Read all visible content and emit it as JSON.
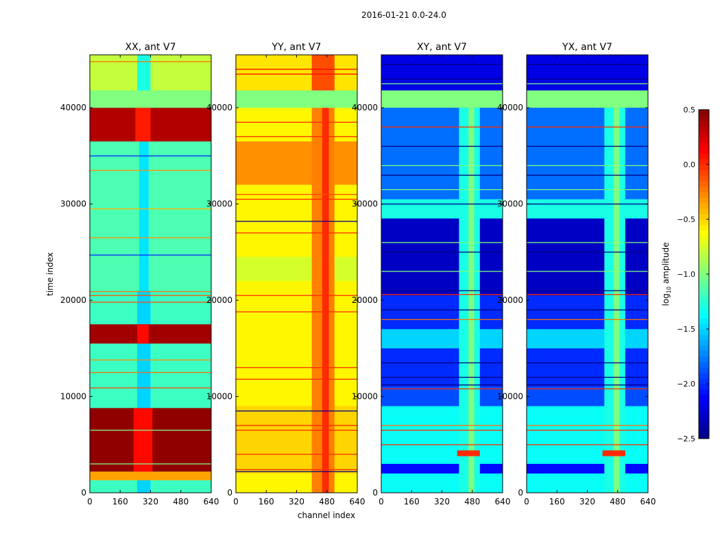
{
  "chart_data": {
    "type": "heatmap",
    "suptitle": "2016-01-21 0.0-24.0",
    "xlabel": "channel index",
    "ylabel": "time index",
    "xlim": [
      0,
      640
    ],
    "ylim": [
      0,
      45500
    ],
    "xticks": [
      "0",
      "160",
      "320",
      "480",
      "640"
    ],
    "xtick_values": [
      0,
      160,
      320,
      480,
      640
    ],
    "yticks": [
      "0",
      "10000",
      "20000",
      "30000",
      "40000"
    ],
    "ytick_values": [
      0,
      10000,
      20000,
      30000,
      40000
    ],
    "colormap": "jet",
    "colorbar": {
      "label": "log10 amplitude",
      "label_main": "log",
      "label_sub": "10",
      "label_rest": " amplitude",
      "range": [
        -2.5,
        0.5
      ],
      "ticks": [
        "0.5",
        "0.0",
        "−0.5",
        "−1.0",
        "−1.5",
        "−2.0",
        "−2.5"
      ],
      "tick_values": [
        0.5,
        0.0,
        -0.5,
        -1.0,
        -1.5,
        -2.0,
        -2.5
      ]
    },
    "panels": [
      {
        "title": "XX, ant V7",
        "blocks": [
          [
            0,
            45500,
            0,
            640,
            -1.2
          ],
          [
            0,
            36500,
            250,
            320,
            -1.5
          ],
          [
            21000,
            36500,
            0,
            640,
            -1.15
          ],
          [
            21000,
            36500,
            260,
            310,
            -1.45
          ],
          [
            1300,
            2200,
            0,
            640,
            -0.35
          ],
          [
            2200,
            8800,
            0,
            640,
            0.45
          ],
          [
            2200,
            8800,
            230,
            330,
            0.1
          ],
          [
            15500,
            17500,
            0,
            640,
            0.4
          ],
          [
            15500,
            17500,
            250,
            310,
            0.1
          ],
          [
            36500,
            40000,
            0,
            640,
            0.35
          ],
          [
            36500,
            40000,
            240,
            320,
            0.05
          ],
          [
            40000,
            41800,
            0,
            640,
            -1.0
          ],
          [
            41800,
            45500,
            0,
            640,
            -0.8
          ],
          [
            41800,
            45500,
            250,
            320,
            -1.3
          ]
        ],
        "lines": [
          [
            10900,
            -0.1
          ],
          [
            12500,
            -0.2
          ],
          [
            13800,
            -0.3
          ],
          [
            19800,
            -0.1
          ],
          [
            20500,
            -0.1
          ],
          [
            20900,
            -0.2
          ],
          [
            24700,
            -2.0
          ],
          [
            26500,
            -0.3
          ],
          [
            29500,
            -0.4
          ],
          [
            33500,
            -0.3
          ],
          [
            35000,
            -2.0
          ],
          [
            44800,
            -0.2
          ],
          [
            3000,
            -1.0
          ],
          [
            6500,
            -1.0
          ]
        ]
      },
      {
        "title": "YY, ant V7",
        "blocks": [
          [
            0,
            45500,
            0,
            640,
            -0.6
          ],
          [
            2000,
            9000,
            0,
            640,
            -0.5
          ],
          [
            22000,
            24500,
            0,
            640,
            -0.75
          ],
          [
            32000,
            36500,
            0,
            640,
            -0.3
          ],
          [
            0,
            40000,
            400,
            520,
            -0.25
          ],
          [
            0,
            40000,
            455,
            490,
            0.0
          ],
          [
            40000,
            41800,
            0,
            640,
            -1.0
          ],
          [
            41800,
            45500,
            0,
            640,
            -0.55
          ],
          [
            41800,
            45500,
            400,
            520,
            -0.1
          ]
        ],
        "lines": [
          [
            2400,
            0.0
          ],
          [
            4000,
            0.0
          ],
          [
            6500,
            0.0
          ],
          [
            7000,
            0.0
          ],
          [
            11800,
            0.0
          ],
          [
            13000,
            0.0
          ],
          [
            18800,
            0.0
          ],
          [
            20500,
            0.0
          ],
          [
            27000,
            0.0
          ],
          [
            30500,
            0.0
          ],
          [
            31000,
            -0.1
          ],
          [
            37000,
            0.0
          ],
          [
            38500,
            0.0
          ],
          [
            43500,
            0.1
          ],
          [
            44000,
            0.1
          ],
          [
            2200,
            -2.5
          ],
          [
            8500,
            -2.5
          ],
          [
            28200,
            -2.5
          ]
        ]
      },
      {
        "title": "XY, ant V7",
        "blocks": [
          [
            0,
            45500,
            0,
            640,
            -1.8
          ],
          [
            0,
            9000,
            0,
            640,
            -1.35
          ],
          [
            2000,
            3000,
            0,
            640,
            -2.1
          ],
          [
            9000,
            11000,
            0,
            640,
            -1.9
          ],
          [
            11000,
            20500,
            0,
            640,
            -2.0
          ],
          [
            15000,
            17000,
            0,
            640,
            -1.5
          ],
          [
            20500,
            28500,
            0,
            640,
            -2.3
          ],
          [
            28500,
            30500,
            0,
            640,
            -1.3
          ],
          [
            30500,
            40000,
            0,
            640,
            -1.8
          ],
          [
            41800,
            45500,
            0,
            640,
            -2.2
          ],
          [
            0,
            40000,
            410,
            520,
            -1.3
          ],
          [
            0,
            40000,
            460,
            490,
            -1.0
          ],
          [
            3800,
            4400,
            400,
            520,
            0.0
          ],
          [
            40000,
            41800,
            0,
            640,
            -1.0
          ]
        ],
        "lines": [
          [
            5000,
            0.0
          ],
          [
            6500,
            0.0
          ],
          [
            7000,
            -0.2
          ],
          [
            10800,
            0.0
          ],
          [
            18000,
            -0.2
          ],
          [
            20600,
            0.0
          ],
          [
            38000,
            0.0
          ],
          [
            11200,
            -2.5
          ],
          [
            12000,
            -2.5
          ],
          [
            13500,
            -2.5
          ],
          [
            19000,
            -2.5
          ],
          [
            21000,
            -2.5
          ],
          [
            25000,
            -2.5
          ],
          [
            30000,
            -2.5
          ],
          [
            33000,
            -2.5
          ],
          [
            36000,
            -2.5
          ],
          [
            43000,
            -2.5
          ],
          [
            44500,
            -2.5
          ],
          [
            23000,
            -1.0
          ],
          [
            26000,
            -1.0
          ],
          [
            31500,
            -1.0
          ],
          [
            34000,
            -1.0
          ],
          [
            42500,
            -1.0
          ]
        ]
      },
      {
        "title": "YX, ant V7",
        "blocks": [
          [
            0,
            45500,
            0,
            640,
            -1.8
          ],
          [
            0,
            9000,
            0,
            640,
            -1.35
          ],
          [
            2000,
            3000,
            0,
            640,
            -2.1
          ],
          [
            9000,
            11000,
            0,
            640,
            -1.9
          ],
          [
            11000,
            20500,
            0,
            640,
            -2.0
          ],
          [
            15000,
            17000,
            0,
            640,
            -1.5
          ],
          [
            20500,
            28500,
            0,
            640,
            -2.3
          ],
          [
            28500,
            30500,
            0,
            640,
            -1.3
          ],
          [
            30500,
            40000,
            0,
            640,
            -1.8
          ],
          [
            41800,
            45500,
            0,
            640,
            -2.2
          ],
          [
            0,
            40000,
            410,
            520,
            -1.3
          ],
          [
            0,
            40000,
            460,
            490,
            -1.0
          ],
          [
            3800,
            4400,
            400,
            520,
            0.0
          ],
          [
            40000,
            41800,
            0,
            640,
            -1.0
          ]
        ],
        "lines": [
          [
            5000,
            0.0
          ],
          [
            6500,
            0.0
          ],
          [
            7000,
            -0.2
          ],
          [
            10800,
            0.0
          ],
          [
            18000,
            -0.2
          ],
          [
            20600,
            0.0
          ],
          [
            38000,
            0.0
          ],
          [
            11200,
            -2.5
          ],
          [
            12000,
            -2.5
          ],
          [
            13500,
            -2.5
          ],
          [
            19000,
            -2.5
          ],
          [
            21000,
            -2.5
          ],
          [
            25000,
            -2.5
          ],
          [
            30000,
            -2.5
          ],
          [
            33000,
            -2.5
          ],
          [
            36000,
            -2.5
          ],
          [
            43000,
            -2.5
          ],
          [
            44500,
            -2.5
          ],
          [
            23000,
            -1.0
          ],
          [
            26000,
            -1.0
          ],
          [
            31500,
            -1.0
          ],
          [
            34000,
            -1.0
          ],
          [
            42500,
            -1.0
          ]
        ]
      }
    ]
  }
}
